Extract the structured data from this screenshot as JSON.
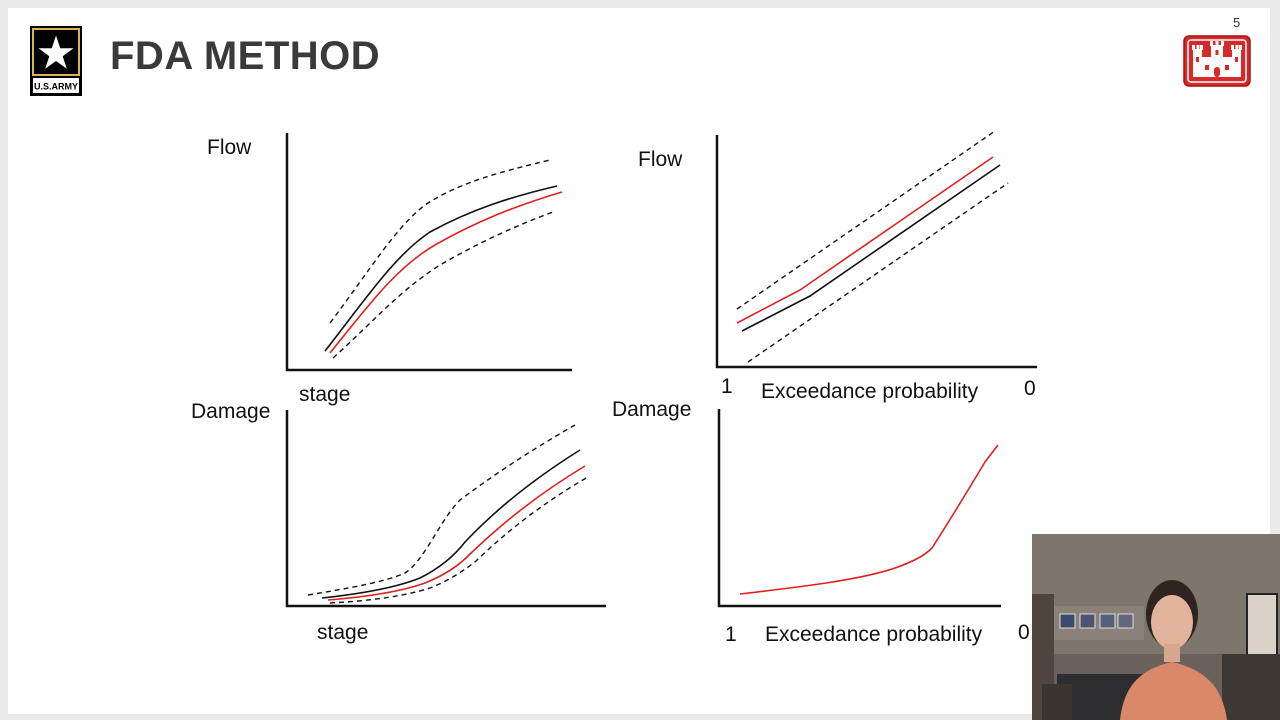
{
  "slide": {
    "title": "FDA METHOD",
    "page_number": "5"
  },
  "logos": {
    "army_text": "U.S.ARMY"
  },
  "panels": {
    "top_left": {
      "y_label": "Flow",
      "x_label": "stage"
    },
    "top_right": {
      "y_label": "Flow",
      "x_label": "Exceedance probability",
      "x_start": "1",
      "x_end": "0"
    },
    "bottom_left": {
      "y_label": "Damage",
      "x_label": "stage"
    },
    "bottom_right": {
      "y_label": "Damage",
      "x_label": "Exceedance probability",
      "x_start": "1",
      "x_end": "0"
    }
  },
  "colors": {
    "title": "#3a3a3a",
    "best_estimate": "#e02020",
    "curve": "#111111",
    "usace_red": "#d6292a"
  },
  "webcam": {
    "description_icon": "presenter-video"
  }
}
